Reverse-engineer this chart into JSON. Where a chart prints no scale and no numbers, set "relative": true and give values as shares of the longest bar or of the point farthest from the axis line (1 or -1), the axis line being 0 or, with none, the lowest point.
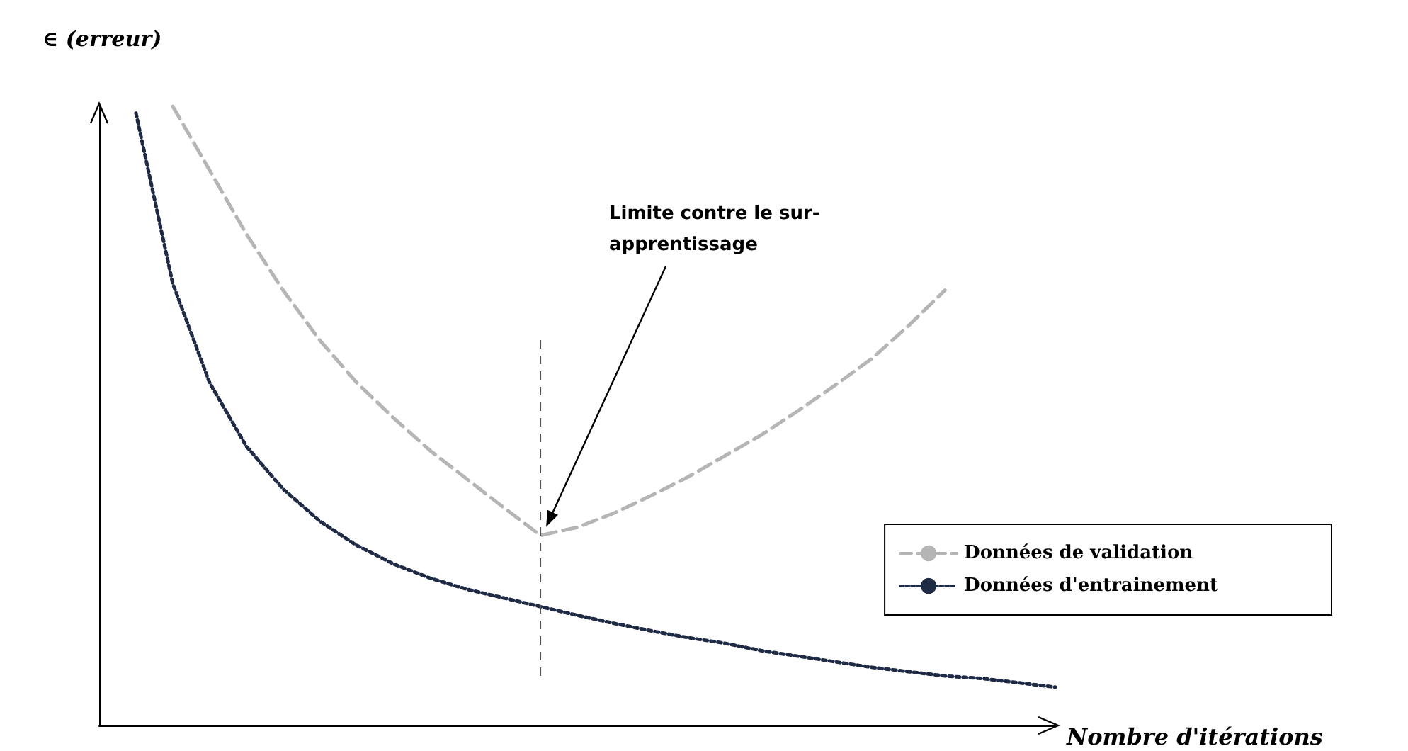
{
  "chart_data": {
    "type": "line",
    "relative": true,
    "xlabel": "Nombre d'itérations",
    "ylabel": "∈ (erreur)",
    "categories": [
      null,
      null,
      null,
      null,
      null,
      null,
      null,
      null,
      null,
      null,
      null,
      null,
      null,
      null,
      null,
      null,
      null,
      null,
      null,
      null,
      null,
      null,
      null,
      null,
      null,
      null,
      null
    ],
    "series": [
      {
        "name": "Données de validation",
        "color": "#b5b5b5",
        "line_style": "dashed",
        "values": [
          null,
          null,
          1.0,
          0.897,
          0.794,
          0.703,
          0.622,
          0.554,
          0.497,
          0.444,
          0.398,
          0.352,
          0.307,
          0.32,
          0.343,
          0.371,
          0.401,
          0.435,
          0.469,
          0.508,
          0.549,
          0.592,
          0.645,
          0.703,
          null,
          null,
          null
        ]
      },
      {
        "name": "Données d'entrainement",
        "color": "#1f2a44",
        "line_style": "dotted",
        "values": [
          null,
          0.989,
          0.714,
          0.554,
          0.451,
          0.382,
          0.33,
          0.291,
          0.261,
          0.238,
          0.22,
          0.206,
          0.192,
          0.178,
          0.165,
          0.153,
          0.142,
          0.133,
          0.121,
          0.112,
          0.103,
          0.094,
          0.087,
          0.08,
          0.076,
          0.069,
          0.062
        ]
      }
    ],
    "annotations": [
      "Limite contre le sur-apprentissage"
    ],
    "legend": "right",
    "grid": false,
    "marker": "none"
  }
}
